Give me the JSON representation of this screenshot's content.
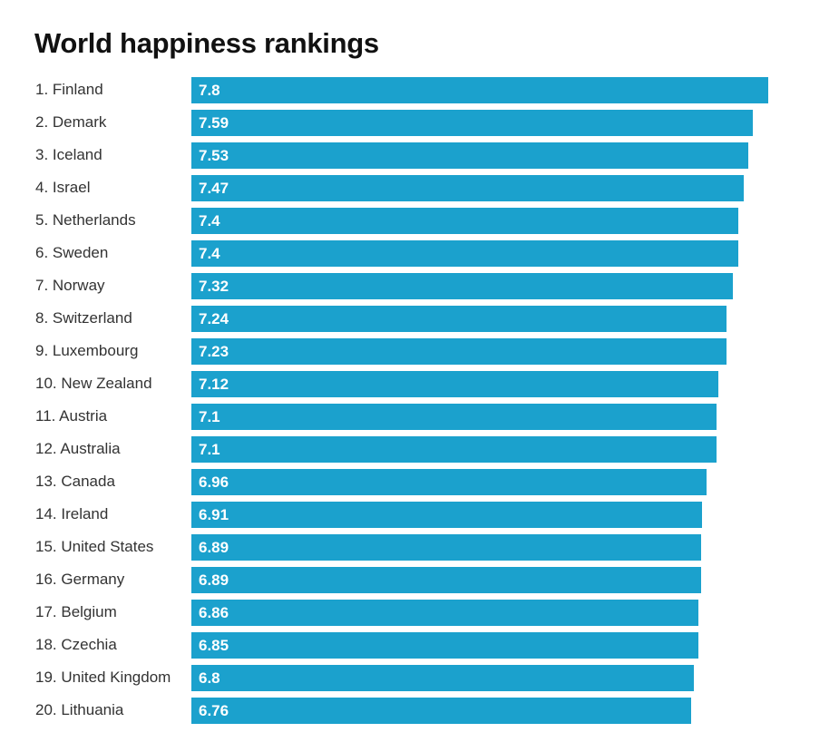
{
  "chart_data": {
    "type": "bar",
    "orientation": "horizontal",
    "title": "World happiness rankings",
    "categories": [
      "1. Finland",
      "2. Demark",
      "3. Iceland",
      "4. Israel",
      "5. Netherlands",
      "6. Sweden",
      "7. Norway",
      "8. Switzerland",
      "9. Luxembourg",
      "10. New Zealand",
      "11. Austria",
      "12. Australia",
      "13. Canada",
      "14. Ireland",
      "15. United States",
      "16. Germany",
      "17. Belgium",
      "18. Czechia",
      "19. United Kingdom",
      "20. Lithuania"
    ],
    "values": [
      7.8,
      7.59,
      7.53,
      7.47,
      7.4,
      7.4,
      7.32,
      7.24,
      7.23,
      7.12,
      7.1,
      7.1,
      6.96,
      6.91,
      6.89,
      6.89,
      6.86,
      6.85,
      6.8,
      6.76
    ],
    "value_labels": [
      "7.8",
      "7.59",
      "7.53",
      "7.47",
      "7.4",
      "7.4",
      "7.32",
      "7.24",
      "7.23",
      "7.12",
      "7.1",
      "7.1",
      "6.96",
      "6.91",
      "6.89",
      "6.89",
      "6.86",
      "6.85",
      "6.8",
      "6.76"
    ],
    "xlim": [
      0,
      7.8
    ],
    "grid": false,
    "bar_color": "#1ba1cd"
  }
}
